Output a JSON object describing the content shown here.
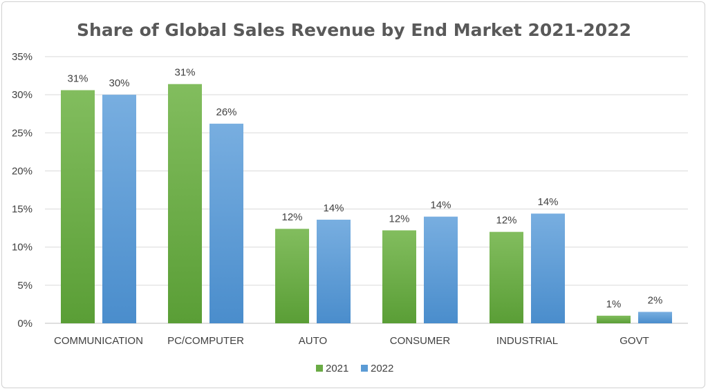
{
  "chart_data": {
    "type": "bar",
    "title": "Share of Global Sales Revenue by End Market 2021-2022",
    "xlabel": "",
    "ylabel": "",
    "categories": [
      "COMMUNICATION",
      "PC/COMPUTER",
      "AUTO",
      "CONSUMER",
      "INDUSTRIAL",
      "GOVT"
    ],
    "series": [
      {
        "name": "2021",
        "color": "#6aab45",
        "values": [
          30.6,
          31.4,
          12.4,
          12.2,
          12.0,
          1.0
        ],
        "labels": [
          "31%",
          "31%",
          "12%",
          "12%",
          "12%",
          "1%"
        ]
      },
      {
        "name": "2022",
        "color": "#5b9bd5",
        "values": [
          30.0,
          26.2,
          13.6,
          14.0,
          14.4,
          1.5
        ],
        "labels": [
          "30%",
          "26%",
          "14%",
          "14%",
          "14%",
          "2%"
        ]
      }
    ],
    "ylim": [
      0,
      35
    ],
    "yticks": [
      "0%",
      "5%",
      "10%",
      "15%",
      "20%",
      "25%",
      "30%",
      "35%"
    ],
    "grid": true,
    "legend": "bottom"
  }
}
